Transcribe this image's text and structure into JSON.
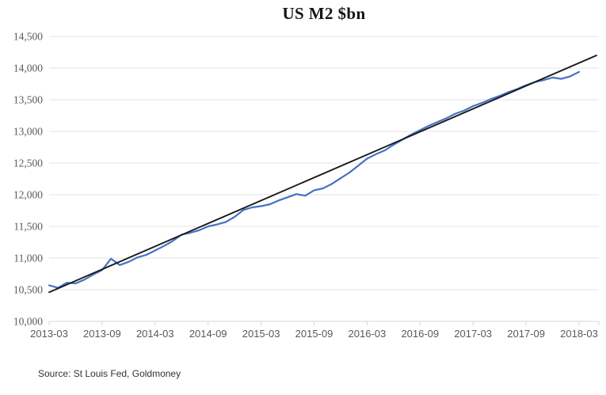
{
  "chart": {
    "title": "US M2 $bn",
    "source": "Source: St Louis Fed, Goldmoney"
  },
  "colors": {
    "series_blue": "#4472C4",
    "trend_black": "#1a1a1a",
    "gridline": "#e3e3e3",
    "axis_line": "#d6d6d6",
    "tick_label": "#595959"
  },
  "chart_data": {
    "type": "line",
    "title": "US M2 $bn",
    "xlabel": "",
    "ylabel": "",
    "x_tick_labels": [
      "2013-03",
      "2013-09",
      "2014-03",
      "2014-09",
      "2015-03",
      "2015-09",
      "2016-03",
      "2016-09",
      "2017-03",
      "2017-09",
      "2018-03"
    ],
    "y_ticks": [
      10000,
      10500,
      11000,
      11500,
      12000,
      12500,
      13000,
      13500,
      14000,
      14500
    ],
    "ylim": [
      10000,
      14500
    ],
    "grid": "horizontal",
    "legend": "none",
    "series": [
      {
        "name": "US M2",
        "color": "#4472C4",
        "frequency": "monthly",
        "x_start": "2013-03",
        "x_end": "2018-03",
        "values": [
          10570,
          10530,
          10610,
          10600,
          10660,
          10740,
          10810,
          10990,
          10890,
          10940,
          11010,
          11050,
          11120,
          11190,
          11270,
          11370,
          11400,
          11440,
          11500,
          11530,
          11570,
          11650,
          11760,
          11800,
          11820,
          11850,
          11910,
          11960,
          12010,
          11985,
          12070,
          12100,
          12170,
          12260,
          12350,
          12460,
          12570,
          12640,
          12700,
          12790,
          12870,
          12950,
          13020,
          13090,
          13150,
          13210,
          13280,
          13330,
          13400,
          13450,
          13510,
          13560,
          13620,
          13670,
          13730,
          13780,
          13810,
          13850,
          13830,
          13870,
          13940
        ]
      },
      {
        "name": "Linear trend",
        "kind": "straight-trendline",
        "color": "#1a1a1a",
        "start_value": 10460,
        "end_value": 14200
      }
    ]
  }
}
